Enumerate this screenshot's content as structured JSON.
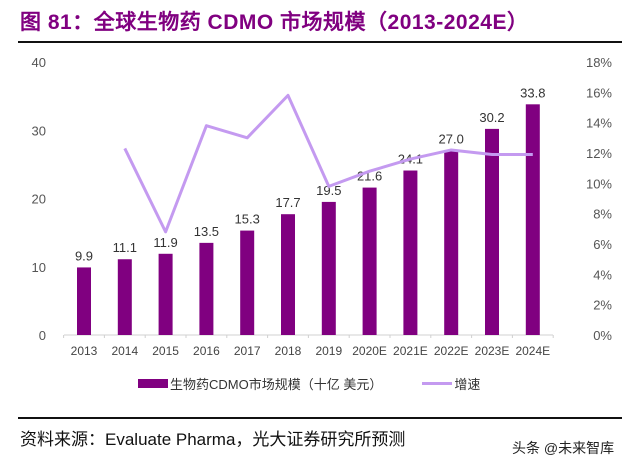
{
  "title": "图 81：全球生物药 CDMO 市场规模（2013-2024E）",
  "source_label": "资料来源：",
  "source_en": "Evaluate Pharma",
  "source_cn": "，光大证券研究所预测",
  "watermark": "头条 @未来智库",
  "colors": {
    "bar": "#800080",
    "line": "#c49af0",
    "title": "#800080"
  },
  "chart_data": {
    "type": "bar+line",
    "categories": [
      "2013",
      "2014",
      "2015",
      "2016",
      "2017",
      "2018",
      "2019",
      "2020E",
      "2021E",
      "2022E",
      "2023E",
      "2024E"
    ],
    "series": [
      {
        "name": "生物药CDMO市场规模（十亿 美元）",
        "type": "bar",
        "axis": "left",
        "values": [
          9.9,
          11.1,
          11.9,
          13.5,
          15.3,
          17.7,
          19.5,
          21.6,
          24.1,
          27.0,
          30.2,
          33.8
        ],
        "labels": [
          "9.9",
          "11.1",
          "11.9",
          "13.5",
          "15.3",
          "17.7",
          "19.5",
          "21.6",
          "24.1",
          "27.0",
          "30.2",
          "33.8"
        ]
      },
      {
        "name": "增速",
        "type": "line",
        "axis": "right",
        "values": [
          null,
          12.3,
          6.8,
          13.8,
          13.0,
          15.8,
          9.8,
          10.8,
          11.6,
          12.2,
          11.9,
          11.9
        ]
      }
    ],
    "y_left": {
      "range": [
        0,
        40
      ],
      "ticks": [
        "0",
        "10",
        "20",
        "30",
        "40"
      ]
    },
    "y_right": {
      "range": [
        0,
        18
      ],
      "unit": "%",
      "ticks": [
        "0%",
        "2%",
        "4%",
        "6%",
        "8%",
        "10%",
        "12%",
        "14%",
        "16%",
        "18%"
      ]
    },
    "grid": false,
    "legend": "bottom"
  }
}
